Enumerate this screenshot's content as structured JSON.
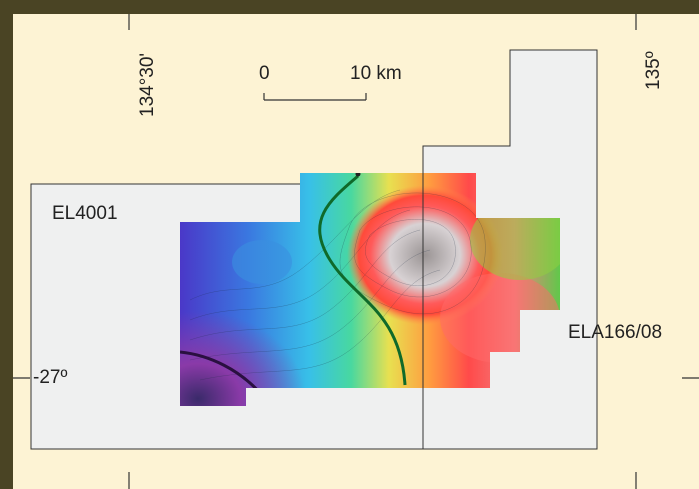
{
  "map": {
    "longitude_labels": [
      "134°30'",
      "135º"
    ],
    "latitude_label": "-27º",
    "scale": {
      "start": "0",
      "end": "10 km"
    },
    "tenements": [
      "EL4001",
      "ELA166/08"
    ]
  },
  "colors": {
    "paper": "#fdf3d4",
    "tenement_fill": "#eff0f0",
    "tenement_edge": "#333333",
    "frame": "#4a4424"
  }
}
